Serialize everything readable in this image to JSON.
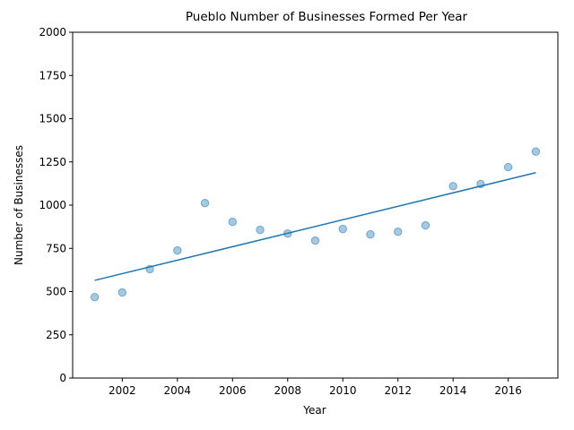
{
  "chart_data": {
    "type": "scatter",
    "title": "Pueblo Number of Businesses Formed Per Year",
    "xlabel": "Year",
    "ylabel": "Number of Businesses",
    "xlim": [
      2000.2,
      2017.8
    ],
    "ylim": [
      0,
      2000
    ],
    "xticks": [
      2002,
      2004,
      2006,
      2008,
      2010,
      2012,
      2014,
      2016
    ],
    "yticks": [
      0,
      250,
      500,
      750,
      1000,
      1250,
      1500,
      1750,
      2000
    ],
    "grid": false,
    "points": [
      {
        "x": 2001,
        "y": 468
      },
      {
        "x": 2002,
        "y": 495
      },
      {
        "x": 2003,
        "y": 630
      },
      {
        "x": 2004,
        "y": 738
      },
      {
        "x": 2005,
        "y": 1012
      },
      {
        "x": 2006,
        "y": 903
      },
      {
        "x": 2007,
        "y": 857
      },
      {
        "x": 2008,
        "y": 836
      },
      {
        "x": 2009,
        "y": 795
      },
      {
        "x": 2010,
        "y": 862
      },
      {
        "x": 2011,
        "y": 831
      },
      {
        "x": 2012,
        "y": 846
      },
      {
        "x": 2013,
        "y": 883
      },
      {
        "x": 2014,
        "y": 1110
      },
      {
        "x": 2015,
        "y": 1122
      },
      {
        "x": 2016,
        "y": 1220
      },
      {
        "x": 2017,
        "y": 1310
      }
    ],
    "trendline": {
      "x": [
        2001,
        2017
      ],
      "y": [
        565,
        1188
      ]
    },
    "colors": {
      "points": "#1f77b4",
      "trendline": "#1f77b4"
    }
  }
}
